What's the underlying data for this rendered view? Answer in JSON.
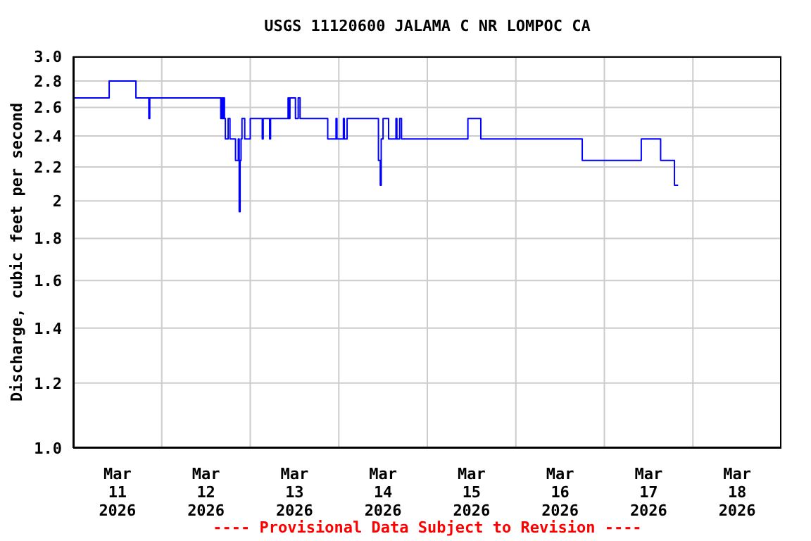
{
  "chart_data": {
    "type": "step",
    "title": "USGS 11120600 JALAMA C NR LOMPOC CA",
    "ylabel": "Discharge, cubic feet per second",
    "annotations": [
      "---- Provisional Data Subject to Revision ----"
    ],
    "x": [
      "2026-03-11T00:00",
      "2026-03-11T09:45",
      "2026-03-11T17:00",
      "2026-03-11T20:30",
      "2026-03-11T20:45",
      "2026-03-12T16:00",
      "2026-03-12T16:15",
      "2026-03-12T16:30",
      "2026-03-12T16:45",
      "2026-03-12T17:00",
      "2026-03-12T17:15",
      "2026-03-12T18:00",
      "2026-03-12T18:30",
      "2026-03-12T20:00",
      "2026-03-12T20:45",
      "2026-03-12T21:00",
      "2026-03-12T21:15",
      "2026-03-12T21:30",
      "2026-03-12T21:45",
      "2026-03-12T22:30",
      "2026-03-13T00:00",
      "2026-03-13T03:15",
      "2026-03-13T03:30",
      "2026-03-13T05:15",
      "2026-03-13T05:30",
      "2026-03-13T10:15",
      "2026-03-13T10:30",
      "2026-03-13T10:45",
      "2026-03-13T12:15",
      "2026-03-13T13:00",
      "2026-03-13T13:30",
      "2026-03-13T21:00",
      "2026-03-13T23:15",
      "2026-03-13T23:30",
      "2026-03-14T01:15",
      "2026-03-14T01:30",
      "2026-03-14T02:15",
      "2026-03-14T10:45",
      "2026-03-14T11:15",
      "2026-03-14T11:30",
      "2026-03-14T12:00",
      "2026-03-14T13:30",
      "2026-03-14T15:30",
      "2026-03-14T15:45",
      "2026-03-14T16:30",
      "2026-03-14T17:00",
      "2026-03-15T11:00",
      "2026-03-15T14:30",
      "2026-03-16T18:00",
      "2026-03-17T10:00",
      "2026-03-17T15:15",
      "2026-03-17T19:00",
      "2026-03-17T20:00"
    ],
    "series": [
      {
        "color": "#0000ff",
        "values": [
          2.67,
          2.8,
          2.67,
          2.52,
          2.67,
          2.52,
          2.67,
          2.52,
          2.67,
          2.52,
          2.38,
          2.52,
          2.38,
          2.24,
          2.38,
          1.94,
          2.24,
          2.38,
          2.52,
          2.38,
          2.52,
          2.38,
          2.52,
          2.38,
          2.52,
          2.67,
          2.52,
          2.67,
          2.52,
          2.67,
          2.52,
          2.38,
          2.52,
          2.38,
          2.52,
          2.38,
          2.52,
          2.24,
          2.09,
          2.38,
          2.52,
          2.38,
          2.52,
          2.38,
          2.52,
          2.38,
          2.52,
          2.38,
          2.24,
          2.38,
          2.24,
          2.09,
          2.09
        ]
      }
    ],
    "xlim": [
      "2026-03-11",
      "2026-03-19"
    ],
    "xticks": [
      {
        "value": "2026-03-11T12:00",
        "label": "Mar\n11\n2026"
      },
      {
        "value": "2026-03-12T00:00",
        "label": null
      },
      {
        "value": "2026-03-12T12:00",
        "label": "Mar\n12\n2026"
      },
      {
        "value": "2026-03-13T00:00",
        "label": null
      },
      {
        "value": "2026-03-13T12:00",
        "label": "Mar\n13\n2026"
      },
      {
        "value": "2026-03-14T00:00",
        "label": null
      },
      {
        "value": "2026-03-14T12:00",
        "label": "Mar\n14\n2026"
      },
      {
        "value": "2026-03-15T00:00",
        "label": null
      },
      {
        "value": "2026-03-15T12:00",
        "label": "Mar\n15\n2026"
      },
      {
        "value": "2026-03-16T00:00",
        "label": null
      },
      {
        "value": "2026-03-16T12:00",
        "label": "Mar\n16\n2026"
      },
      {
        "value": "2026-03-17T00:00",
        "label": null
      },
      {
        "value": "2026-03-17T12:00",
        "label": "Mar\n17\n2026"
      },
      {
        "value": "2026-03-18T00:00",
        "label": null
      },
      {
        "value": "2026-03-18T12:00",
        "label": "Mar\n18\n2026"
      }
    ],
    "ylim": [
      1,
      3
    ],
    "yticks": [
      {
        "value": 1,
        "label": "1.0"
      },
      1.2,
      1.4,
      1.6,
      1.8,
      2,
      2.2,
      2.4,
      2.6,
      2.8,
      {
        "value": 3,
        "label": "3.0"
      }
    ],
    "log": true,
    "grid": true,
    "legend": false,
    "marker": "none",
    "line_style": "solid"
  }
}
